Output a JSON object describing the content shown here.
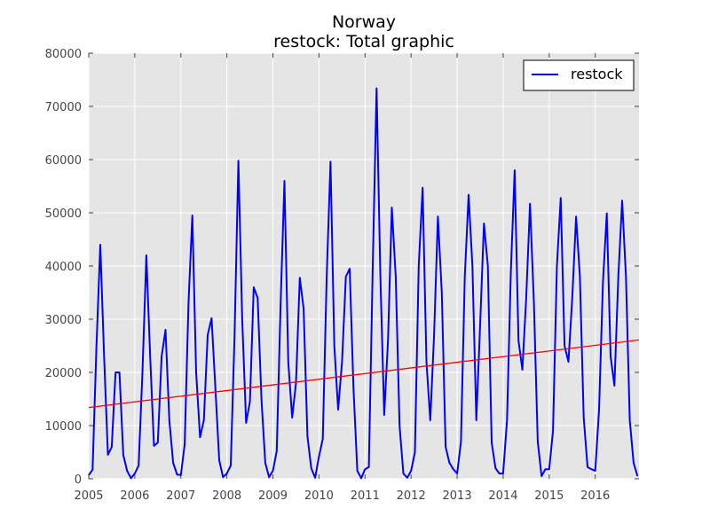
{
  "chart_data": {
    "type": "line",
    "title": "Norway",
    "subtitle": "restock: Total graphic",
    "xlabel": "",
    "ylabel": "",
    "xlim": [
      2005.0,
      2016.95
    ],
    "ylim": [
      0,
      80000
    ],
    "grid": true,
    "background": "#e5e5e5",
    "legend": {
      "placement": "top-right"
    },
    "x_ticks": [
      2005,
      2006,
      2007,
      2008,
      2009,
      2010,
      2011,
      2012,
      2013,
      2014,
      2015,
      2016
    ],
    "x_tick_labels": [
      "2005",
      "2006",
      "2007",
      "2008",
      "2009",
      "2010",
      "2011",
      "2012",
      "2013",
      "2014",
      "2015",
      "2016"
    ],
    "y_ticks": [
      0,
      10000,
      20000,
      30000,
      40000,
      50000,
      60000,
      70000,
      80000
    ],
    "y_tick_labels": [
      "0",
      "10000",
      "20000",
      "30000",
      "40000",
      "50000",
      "60000",
      "70000",
      "80000"
    ],
    "series": [
      {
        "name": "restock",
        "color": "#0000ff",
        "style": "line",
        "x": [
          2005.0,
          2005.083,
          2005.167,
          2005.25,
          2005.333,
          2005.417,
          2005.5,
          2005.583,
          2005.667,
          2005.75,
          2005.833,
          2005.917,
          2006.0,
          2006.083,
          2006.167,
          2006.25,
          2006.333,
          2006.417,
          2006.5,
          2006.583,
          2006.667,
          2006.75,
          2006.833,
          2006.917,
          2007.0,
          2007.083,
          2007.167,
          2007.25,
          2007.333,
          2007.417,
          2007.5,
          2007.583,
          2007.667,
          2007.75,
          2007.833,
          2007.917,
          2008.0,
          2008.083,
          2008.167,
          2008.25,
          2008.333,
          2008.417,
          2008.5,
          2008.583,
          2008.667,
          2008.75,
          2008.833,
          2008.917,
          2009.0,
          2009.083,
          2009.167,
          2009.25,
          2009.333,
          2009.417,
          2009.5,
          2009.583,
          2009.667,
          2009.75,
          2009.833,
          2009.917,
          2010.0,
          2010.083,
          2010.167,
          2010.25,
          2010.333,
          2010.417,
          2010.5,
          2010.583,
          2010.667,
          2010.75,
          2010.833,
          2010.917,
          2011.0,
          2011.083,
          2011.167,
          2011.25,
          2011.333,
          2011.417,
          2011.5,
          2011.583,
          2011.667,
          2011.75,
          2011.833,
          2011.917,
          2012.0,
          2012.083,
          2012.167,
          2012.25,
          2012.333,
          2012.417,
          2012.5,
          2012.583,
          2012.667,
          2012.75,
          2012.833,
          2012.917,
          2013.0,
          2013.083,
          2013.167,
          2013.25,
          2013.333,
          2013.417,
          2013.5,
          2013.583,
          2013.667,
          2013.75,
          2013.833,
          2013.917,
          2014.0,
          2014.083,
          2014.167,
          2014.25,
          2014.333,
          2014.417,
          2014.5,
          2014.583,
          2014.667,
          2014.75,
          2014.833,
          2014.917,
          2015.0,
          2015.083,
          2015.167,
          2015.25,
          2015.333,
          2015.417,
          2015.5,
          2015.583,
          2015.667,
          2015.75,
          2015.833,
          2015.917,
          2016.0,
          2016.083,
          2016.167,
          2016.25,
          2016.333,
          2016.417,
          2016.5,
          2016.583,
          2016.667,
          2016.75,
          2016.833,
          2016.917
        ],
        "values": [
          700,
          1700,
          25000,
          44000,
          23000,
          4500,
          6000,
          20000,
          20000,
          4500,
          1500,
          100,
          1000,
          2500,
          20000,
          42000,
          23000,
          6200,
          6800,
          23000,
          28000,
          11000,
          3000,
          800,
          700,
          6500,
          33000,
          49500,
          20000,
          7800,
          11000,
          27000,
          30200,
          17000,
          3500,
          300,
          1000,
          2500,
          27000,
          59800,
          30000,
          10500,
          14500,
          36000,
          34000,
          15000,
          3000,
          300,
          1500,
          5200,
          33000,
          56000,
          22000,
          11500,
          18000,
          37800,
          32000,
          8000,
          2000,
          200,
          4200,
          7500,
          38000,
          59600,
          25000,
          13000,
          22000,
          38000,
          39500,
          17000,
          1500,
          100,
          1800,
          2200,
          40000,
          73400,
          38000,
          12000,
          26000,
          51000,
          38000,
          10000,
          1000,
          200,
          1500,
          5000,
          40000,
          54700,
          22000,
          11000,
          27000,
          49300,
          35000,
          6000,
          3000,
          1800,
          1000,
          7000,
          38000,
          53400,
          40000,
          11000,
          29000,
          48000,
          40000,
          6800,
          2000,
          1000,
          1000,
          11000,
          39000,
          58000,
          26000,
          20500,
          34000,
          51700,
          33000,
          7000,
          500,
          1800,
          1800,
          9000,
          40000,
          52800,
          25000,
          22000,
          34000,
          49300,
          38000,
          11500,
          2200,
          1800,
          1500,
          13000,
          37000,
          49900,
          23000,
          17500,
          38000,
          52300,
          38000,
          11000,
          3000,
          500
        ]
      },
      {
        "name": "",
        "color": "#ff0000",
        "style": "trend",
        "x": [
          2005.0,
          2016.95
        ],
        "values": [
          13400,
          26100
        ]
      }
    ]
  }
}
